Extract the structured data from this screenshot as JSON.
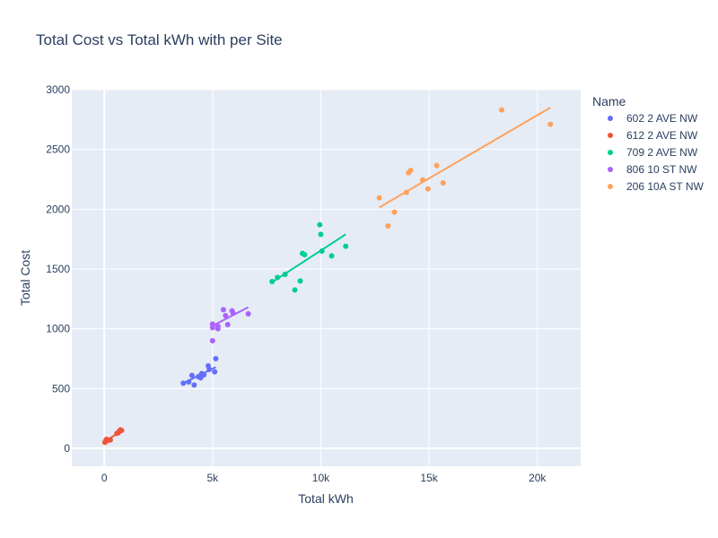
{
  "chart_data": {
    "type": "scatter",
    "title": "Total Cost vs Total kWh with per Site",
    "xlabel": "Total kWh",
    "ylabel": "Total Cost",
    "xlim": [
      -1500,
      22000
    ],
    "ylim": [
      -150,
      3000
    ],
    "x_ticks": [
      {
        "value": 0,
        "label": "0"
      },
      {
        "value": 5000,
        "label": "5k"
      },
      {
        "value": 10000,
        "label": "10k"
      },
      {
        "value": 15000,
        "label": "15k"
      },
      {
        "value": 20000,
        "label": "20k"
      }
    ],
    "y_ticks": [
      {
        "value": 0,
        "label": "0"
      },
      {
        "value": 500,
        "label": "500"
      },
      {
        "value": 1000,
        "label": "1000"
      },
      {
        "value": 1500,
        "label": "1500"
      },
      {
        "value": 2000,
        "label": "2000"
      },
      {
        "value": 2500,
        "label": "2500"
      },
      {
        "value": 3000,
        "label": "3000"
      }
    ],
    "grid": true,
    "legend_title": "Name",
    "legend_position": "right",
    "series": [
      {
        "name": "602 2 AVE NW",
        "color": "#636efa",
        "points": [
          [
            3650,
            545
          ],
          [
            3900,
            555
          ],
          [
            4050,
            610
          ],
          [
            4150,
            530
          ],
          [
            4350,
            600
          ],
          [
            4450,
            590
          ],
          [
            4500,
            625
          ],
          [
            4600,
            615
          ],
          [
            4800,
            690
          ],
          [
            4850,
            660
          ],
          [
            5100,
            640
          ],
          [
            5150,
            750
          ]
        ],
        "trendline": [
          [
            3650,
            545
          ],
          [
            5150,
            680
          ]
        ]
      },
      {
        "name": "612 2 AVE NW",
        "color": "#ef553b",
        "points": [
          [
            30,
            50
          ],
          [
            60,
            60
          ],
          [
            100,
            75
          ],
          [
            150,
            65
          ],
          [
            200,
            70
          ],
          [
            280,
            70
          ],
          [
            580,
            125
          ],
          [
            650,
            130
          ],
          [
            700,
            145
          ],
          [
            750,
            155
          ],
          [
            800,
            150
          ]
        ],
        "trendline": [
          [
            30,
            55
          ],
          [
            800,
            150
          ]
        ]
      },
      {
        "name": "709 2 AVE NW",
        "color": "#00cc96",
        "points": [
          [
            7750,
            1395
          ],
          [
            8000,
            1430
          ],
          [
            8350,
            1455
          ],
          [
            8800,
            1325
          ],
          [
            9050,
            1400
          ],
          [
            9150,
            1630
          ],
          [
            9250,
            1620
          ],
          [
            9950,
            1870
          ],
          [
            10000,
            1790
          ],
          [
            10050,
            1650
          ],
          [
            10500,
            1610
          ],
          [
            11150,
            1690
          ]
        ],
        "trendline": [
          [
            7750,
            1390
          ],
          [
            11150,
            1790
          ]
        ]
      },
      {
        "name": "806 10 ST NW",
        "color": "#ab63fa",
        "points": [
          [
            5000,
            900
          ],
          [
            5000,
            1010
          ],
          [
            5000,
            1040
          ],
          [
            5250,
            1000
          ],
          [
            5250,
            1020
          ],
          [
            5500,
            1160
          ],
          [
            5600,
            1110
          ],
          [
            5700,
            1035
          ],
          [
            5900,
            1150
          ],
          [
            5950,
            1130
          ],
          [
            6650,
            1125
          ]
        ],
        "trendline": [
          [
            5000,
            1025
          ],
          [
            6650,
            1180
          ]
        ]
      },
      {
        "name": "206 10A ST NW",
        "color": "#ffa15a",
        "points": [
          [
            12700,
            2095
          ],
          [
            13100,
            1860
          ],
          [
            13400,
            1975
          ],
          [
            13950,
            2140
          ],
          [
            14050,
            2305
          ],
          [
            14150,
            2325
          ],
          [
            14700,
            2245
          ],
          [
            14950,
            2170
          ],
          [
            15350,
            2365
          ],
          [
            15650,
            2220
          ],
          [
            18350,
            2830
          ],
          [
            20600,
            2710
          ]
        ],
        "trendline": [
          [
            12700,
            2015
          ],
          [
            20600,
            2850
          ]
        ]
      }
    ]
  }
}
